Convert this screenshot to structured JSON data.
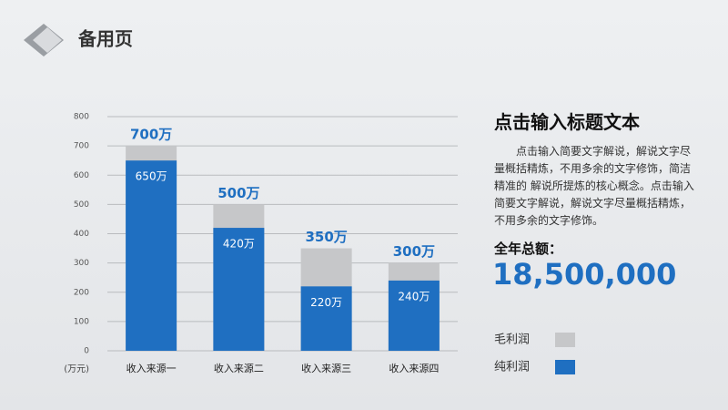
{
  "header": {
    "title": "备用页"
  },
  "panel": {
    "title": "点击输入标题文本",
    "body": "点击输入简要文字解说，解说文字尽量概括精炼，不用多余的文字修饰，简洁精准的 解说所提炼的核心概念。点击输入简要文字解说，解说文字尽量概括精炼，不用多余的文字修饰。",
    "total_label": "全年总额：",
    "total_value": "18,500,000"
  },
  "chart_data": {
    "type": "overlay_bar",
    "y_unit": "(万元)",
    "categories": [
      "收入来源一",
      "收入来源二",
      "收入来源三",
      "收入来源四"
    ],
    "series": [
      {
        "name": "毛利润",
        "color": "#c6c7c9",
        "values": [
          700,
          500,
          350,
          300
        ],
        "value_labels": [
          "700万",
          "500万",
          "350万",
          "300万"
        ]
      },
      {
        "name": "纯利润",
        "color": "#1f6fc1",
        "values": [
          650,
          420,
          220,
          240
        ],
        "value_labels": [
          "650万",
          "420万",
          "220万",
          "240万"
        ]
      }
    ],
    "ylim": [
      0,
      800
    ],
    "yticks": [
      0,
      100,
      200,
      300,
      400,
      500,
      600,
      700,
      800
    ],
    "grid": true
  }
}
